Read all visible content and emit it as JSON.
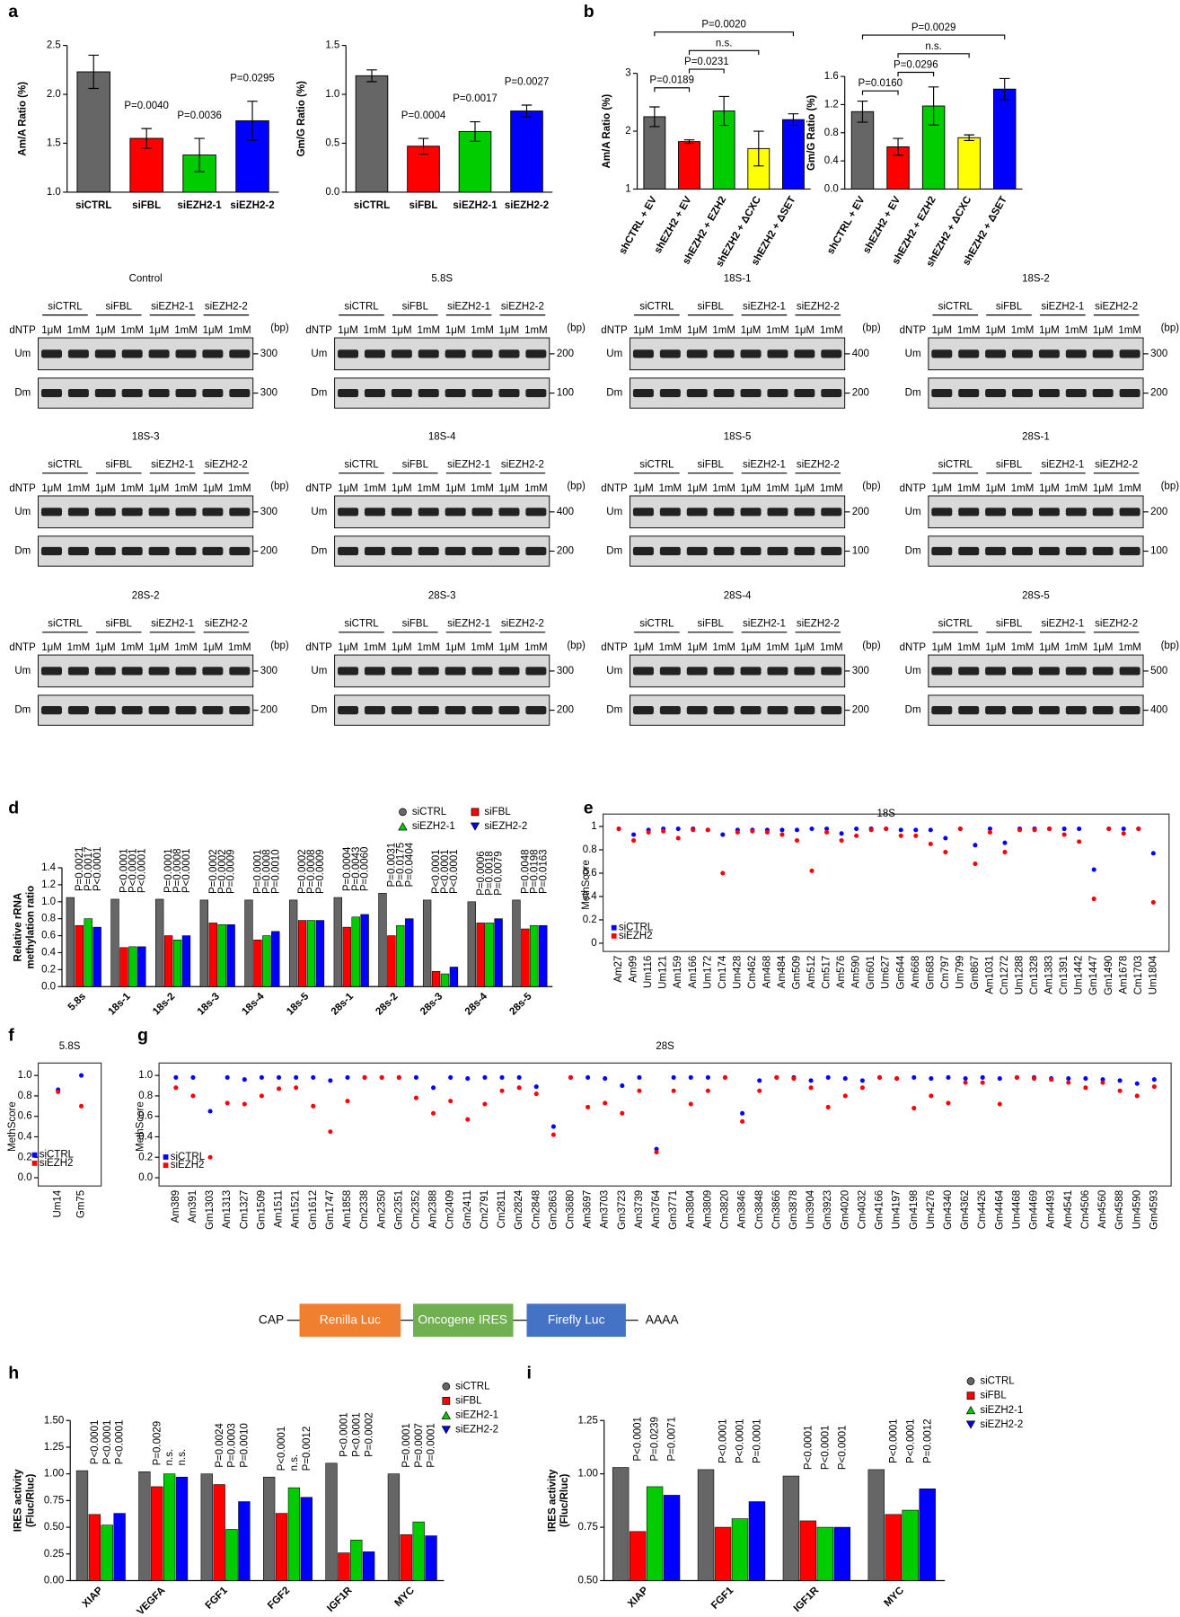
{
  "panel_labels": [
    "a",
    "b",
    "d",
    "e",
    "f",
    "g",
    "h",
    "i"
  ],
  "construct": {
    "start": "CAP",
    "elements": [
      "Renilla Luc",
      "Oncogene IRES",
      "Firefly Luc"
    ],
    "end": "AAAA"
  },
  "gels": {
    "groups": [
      "siCTRL",
      "siFBL",
      "siEZH2-1",
      "siEZH2-2"
    ],
    "concentrations": [
      "1μM",
      "1mM"
    ],
    "dntp": "dNTP",
    "unit": "(bp)",
    "rows": [
      "Um",
      "Dm"
    ],
    "panels": [
      {
        "title": "Control",
        "markers": [
          300,
          300
        ]
      },
      {
        "title": "5.8S",
        "markers": [
          200,
          100
        ]
      },
      {
        "title": "18S-1",
        "markers": [
          400,
          200
        ]
      },
      {
        "title": "18S-2",
        "markers": [
          300,
          200
        ]
      },
      {
        "title": "18S-3",
        "markers": [
          300,
          200
        ]
      },
      {
        "title": "18S-4",
        "markers": [
          400,
          200
        ]
      },
      {
        "title": "18S-5",
        "markers": [
          200,
          100
        ]
      },
      {
        "title": "28S-1",
        "markers": [
          200,
          100
        ]
      },
      {
        "title": "28S-2",
        "markers": [
          300,
          200
        ]
      },
      {
        "title": "28S-3",
        "markers": [
          300,
          200
        ]
      },
      {
        "title": "28S-4",
        "markers": [
          300,
          200
        ]
      },
      {
        "title": "28S-5",
        "markers": [
          500,
          400
        ]
      }
    ]
  },
  "chart_data": [
    {
      "type": "bar",
      "ylabel": "Am/A Ratio (%)",
      "categories": [
        "siCTRL",
        "siFBL",
        "siEZH2-1",
        "siEZH2-2"
      ],
      "values": [
        2.23,
        1.55,
        1.38,
        1.73
      ],
      "errors": [
        0.17,
        0.1,
        0.17,
        0.2
      ],
      "colors": [
        "#666666",
        "#ff0000",
        "#00cc00",
        "#0000ff"
      ],
      "ylim": [
        1.0,
        2.5
      ],
      "yticks": [
        {
          "value": 1,
          "label": "1.0"
        },
        1.5,
        {
          "value": 2,
          "label": "2.0"
        },
        2.5
      ],
      "annotations": [
        null,
        "P=0.0040",
        "P=0.0036",
        "P=0.0295"
      ]
    },
    {
      "type": "bar",
      "ylabel": "Gm/G Ratio (%)",
      "categories": [
        "siCTRL",
        "siFBL",
        "siEZH2-1",
        "siEZH2-2"
      ],
      "values": [
        1.19,
        0.47,
        0.62,
        0.83
      ],
      "errors": [
        0.06,
        0.08,
        0.1,
        0.06
      ],
      "colors": [
        "#666666",
        "#ff0000",
        "#00cc00",
        "#0000ff"
      ],
      "ylim": [
        0,
        1.5
      ],
      "yticks": [
        {
          "value": 0,
          "label": "0.0"
        },
        0.5,
        {
          "value": 1,
          "label": "1.0"
        },
        1.5
      ],
      "annotations": [
        null,
        "P=0.0004",
        "P=0.0017",
        "P=0.0027"
      ]
    },
    {
      "type": "bar",
      "ylabel": "Am/A Ratio (%)",
      "categories": [
        "shCTRL + EV",
        "shEZH2 + EV",
        "shEZH2 + EZH2",
        "shEZH2 + ΔCXC",
        "shEZH2 + ΔSET"
      ],
      "values": [
        2.25,
        1.82,
        2.35,
        1.7,
        2.2
      ],
      "errors": [
        0.17,
        0.03,
        0.25,
        0.3,
        0.1
      ],
      "colors": [
        "#666666",
        "#ff0000",
        "#00cc00",
        "#ffff00",
        "#0000ff"
      ],
      "ylim": [
        1,
        3
      ],
      "yticks": [
        1,
        2,
        3
      ],
      "comparisons": [
        {
          "label": "P=0.0189",
          "between": [
            0,
            1
          ]
        },
        {
          "label": "P=0.0231",
          "between": [
            1,
            2
          ]
        },
        {
          "label": "n.s.",
          "between": [
            1,
            3
          ]
        },
        {
          "label": "P=0.0020",
          "between": [
            0,
            4
          ]
        }
      ]
    },
    {
      "type": "bar",
      "ylabel": "Gm/G Ratio (%)",
      "categories": [
        "shCTRL + EV",
        "shEZH2 + EV",
        "shEZH2 + EZH2",
        "shEZH2 + ΔCXC",
        "shEZH2 + ΔSET"
      ],
      "values": [
        1.1,
        0.6,
        1.18,
        0.73,
        1.42
      ],
      "errors": [
        0.15,
        0.12,
        0.27,
        0.04,
        0.15
      ],
      "colors": [
        "#666666",
        "#ff0000",
        "#00cc00",
        "#ffff00",
        "#0000ff"
      ],
      "ylim": [
        0,
        1.6
      ],
      "yticks": [
        {
          "value": 0,
          "label": "0.0"
        },
        0.4,
        0.8,
        1.2,
        1.6
      ],
      "comparisons": [
        {
          "label": "P=0.0160",
          "between": [
            0,
            1
          ]
        },
        {
          "label": "P=0.0296",
          "between": [
            1,
            2
          ]
        },
        {
          "label": "n.s.",
          "between": [
            1,
            3
          ]
        },
        {
          "label": "P=0.0029",
          "between": [
            0,
            4
          ]
        }
      ]
    },
    {
      "type": "grouped_bar",
      "ylabel": [
        "Relative rRNA",
        "methylation ratio"
      ],
      "categories": [
        "5.8s",
        "18s-1",
        "18s-2",
        "18s-3",
        "18s-4",
        "18s-5",
        "28s-1",
        "28s-2",
        "28s-3",
        "28s-4",
        "28s-5"
      ],
      "series": [
        {
          "name": "siCTRL",
          "color": "#666666",
          "values": [
            1.05,
            1.03,
            1.03,
            1.02,
            1.02,
            1.02,
            1.05,
            1.1,
            1.02,
            1.0,
            1.02
          ]
        },
        {
          "name": "siFBL",
          "color": "#ff0000",
          "values": [
            0.72,
            0.46,
            0.6,
            0.75,
            0.55,
            0.78,
            0.7,
            0.6,
            0.18,
            0.75,
            0.68
          ]
        },
        {
          "name": "siEZH2-1",
          "color": "#00cc00",
          "values": [
            0.8,
            0.47,
            0.55,
            0.73,
            0.6,
            0.78,
            0.82,
            0.72,
            0.15,
            0.75,
            0.72
          ]
        },
        {
          "name": "siEZH2-2",
          "color": "#0000ff",
          "values": [
            0.7,
            0.47,
            0.6,
            0.73,
            0.65,
            0.78,
            0.85,
            0.8,
            0.23,
            0.8,
            0.72
          ]
        }
      ],
      "ylim": [
        0,
        1.4
      ],
      "yticks": [
        {
          "value": 0,
          "label": "0.0"
        },
        0.2,
        0.4,
        0.6,
        0.8,
        {
          "value": 1,
          "label": "1.0"
        },
        1.2,
        1.4
      ],
      "p_labels": [
        [
          "P=0.0021",
          "P=0.0017",
          "P<0.0001"
        ],
        [
          "P<0.0001",
          "P<0.0001",
          "P<0.0001"
        ],
        [
          "P=0.0001",
          "P=0.0008",
          "P<0.0001"
        ],
        [
          "P=0.0002",
          "P=0.0002",
          "P=0.0009"
        ],
        [
          "P=0.0001",
          "P=0.0008",
          "P=0.0010"
        ],
        [
          "P=0.0002",
          "P=0.0008",
          "P=0.0009"
        ],
        [
          "P=0.0004",
          "P=0.0043",
          "P=0.0060"
        ],
        [
          "P=0.0031",
          "P=0.0175",
          "P=0.0404"
        ],
        [
          "P<0.0001",
          "P<0.0001",
          "P<0.0001"
        ],
        [
          "P=0.0006",
          "P=0.0018",
          "P=0.0079"
        ],
        [
          "P=0.0048",
          "P=0.0198",
          "P=0.0163"
        ]
      ]
    },
    {
      "type": "dot",
      "title": "18S",
      "ylabel": "MethScore",
      "categories": [
        "Am27",
        "Am99",
        "Um116",
        "Um121",
        "Am159",
        "Am166",
        "Um172",
        "Cm174",
        "Um428",
        "Cm462",
        "Am468",
        "Am484",
        "Gm509",
        "Am512",
        "Cm517",
        "Am576",
        "Am590",
        "Gm601",
        "Um627",
        "Gm644",
        "Am668",
        "Gm683",
        "Cm797",
        "Um799",
        "Gm867",
        "Am1031",
        "Cm1272",
        "Um1288",
        "Cm1328",
        "Am1383",
        "Cm1391",
        "Um1442",
        "Gm1447",
        "Gm1490",
        "Am1678",
        "Cm1703",
        "Um1804"
      ],
      "series": [
        {
          "name": "siCTRL",
          "color": "#0000ff",
          "values": [
            0.98,
            0.93,
            0.97,
            0.98,
            0.98,
            0.98,
            0.97,
            0.93,
            0.97,
            0.97,
            0.97,
            0.97,
            0.97,
            0.98,
            0.98,
            0.94,
            0.98,
            0.98,
            0.98,
            0.97,
            0.97,
            0.97,
            0.9,
            0.98,
            0.84,
            0.98,
            0.86,
            0.98,
            0.98,
            0.98,
            0.98,
            0.98,
            0.63,
            0.98,
            0.98,
            0.98,
            0.77
          ]
        },
        {
          "name": "siEZH2",
          "color": "#ff0000",
          "values": [
            0.98,
            0.88,
            0.95,
            0.96,
            0.9,
            0.97,
            0.97,
            0.6,
            0.95,
            0.96,
            0.95,
            0.93,
            0.88,
            0.62,
            0.95,
            0.88,
            0.92,
            0.97,
            0.98,
            0.92,
            0.92,
            0.85,
            0.78,
            0.98,
            0.68,
            0.95,
            0.78,
            0.97,
            0.97,
            0.98,
            0.93,
            0.87,
            0.38,
            0.98,
            0.94,
            0.98,
            0.35
          ]
        }
      ],
      "ylim": [
        0,
        1
      ],
      "yticks": [
        0,
        0.2,
        0.4,
        0.6,
        0.8,
        1
      ]
    },
    {
      "type": "dot",
      "title": "5.8S",
      "ylabel": "MethScore",
      "categories": [
        "Um14",
        "Gm75"
      ],
      "series": [
        {
          "name": "siCTRL",
          "color": "#0000ff",
          "values": [
            0.86,
            1.0
          ]
        },
        {
          "name": "siEZH2",
          "color": "#ff0000",
          "values": [
            0.84,
            0.7
          ]
        }
      ],
      "ylim": [
        0,
        1
      ],
      "yticks": [
        {
          "value": 0,
          "label": "0.0"
        },
        0.2,
        0.4,
        0.6,
        0.8,
        {
          "value": 1,
          "label": "1.0"
        }
      ]
    },
    {
      "type": "dot",
      "title": "28S",
      "ylabel": "MethScore",
      "categories": [
        "Am389",
        "Am391",
        "Gm1303",
        "Am1313",
        "Cm1327",
        "Gm1509",
        "Am1511",
        "Am1521",
        "Gm1612",
        "Gm1747",
        "Am1858",
        "Cm2338",
        "Am2350",
        "Gm2351",
        "Cm2352",
        "Am2388",
        "Cm2409",
        "Gm2411",
        "Cm2791",
        "Cm2811",
        "Gm2824",
        "Cm2848",
        "Gm2863",
        "Cm3680",
        "Am3697",
        "Am3703",
        "Gm3723",
        "Am3739",
        "Am3764",
        "Gm3771",
        "Am3804",
        "Am3809",
        "Cm3820",
        "Am3846",
        "Cm3848",
        "Cm3866",
        "Gm3878",
        "Um3904",
        "Gm3923",
        "Gm4020",
        "Cm4032",
        "Gm4166",
        "Um4197",
        "Gm4198",
        "Um4276",
        "Gm4340",
        "Gm4362",
        "Cm4426",
        "Gm4464",
        "Um4468",
        "Gm4469",
        "Am4493",
        "Am4541",
        "Cm4506",
        "Am4560",
        "Gm4588",
        "Um4590",
        "Gm4593"
      ],
      "series": [
        {
          "name": "siCTRL",
          "color": "#0000ff",
          "values": [
            0.98,
            0.98,
            0.65,
            0.98,
            0.96,
            0.98,
            0.98,
            0.98,
            0.98,
            0.95,
            0.98,
            0.98,
            0.98,
            0.98,
            0.98,
            0.88,
            0.98,
            0.97,
            0.98,
            0.98,
            0.98,
            0.89,
            0.5,
            0.98,
            0.98,
            0.97,
            0.9,
            0.98,
            0.28,
            0.98,
            0.98,
            0.98,
            0.98,
            0.63,
            0.95,
            0.98,
            0.98,
            0.95,
            0.98,
            0.97,
            0.95,
            0.98,
            0.97,
            0.98,
            0.97,
            0.98,
            0.97,
            0.98,
            0.97,
            0.98,
            0.98,
            0.97,
            0.97,
            0.97,
            0.96,
            0.95,
            0.92,
            0.96
          ]
        },
        {
          "name": "siEZH2",
          "color": "#ff0000",
          "values": [
            0.88,
            0.8,
            0.2,
            0.73,
            0.72,
            0.8,
            0.87,
            0.88,
            0.7,
            0.45,
            0.75,
            0.98,
            0.98,
            0.98,
            0.78,
            0.63,
            0.75,
            0.57,
            0.72,
            0.85,
            0.88,
            0.82,
            0.42,
            0.98,
            0.69,
            0.73,
            0.63,
            0.85,
            0.25,
            0.85,
            0.72,
            0.85,
            0.98,
            0.55,
            0.85,
            0.98,
            0.97,
            0.88,
            0.69,
            0.8,
            0.88,
            0.98,
            0.97,
            0.68,
            0.8,
            0.73,
            0.93,
            0.93,
            0.72,
            0.98,
            0.97,
            0.96,
            0.93,
            0.88,
            0.93,
            0.85,
            0.8,
            0.89
          ]
        }
      ],
      "ylim": [
        0,
        1
      ],
      "yticks": [
        {
          "value": 0,
          "label": "0.0"
        },
        0.2,
        0.4,
        0.6,
        0.8,
        {
          "value": 1,
          "label": "1.0"
        }
      ]
    },
    {
      "type": "grouped_bar",
      "ylabel": [
        "IRES activity",
        "(Fluc/Rluc)"
      ],
      "categories": [
        "XIAP",
        "VEGFA",
        "FGF1",
        "FGF2",
        "IGF1R",
        "MYC"
      ],
      "series": [
        {
          "name": "siCTRL",
          "color": "#666666",
          "values": [
            1.03,
            1.02,
            1.0,
            0.97,
            1.1,
            1.0
          ]
        },
        {
          "name": "siFBL",
          "color": "#ff0000",
          "values": [
            0.62,
            0.88,
            0.9,
            0.63,
            0.26,
            0.43
          ]
        },
        {
          "name": "siEZH2-1",
          "color": "#00cc00",
          "values": [
            0.52,
            1.0,
            0.48,
            0.87,
            0.38,
            0.55
          ]
        },
        {
          "name": "siEZH2-2",
          "color": "#0000ff",
          "values": [
            0.63,
            0.97,
            0.74,
            0.78,
            0.27,
            0.42
          ]
        }
      ],
      "ylim": [
        0,
        1.5
      ],
      "yticks": [
        {
          "value": 0,
          "label": "0.00"
        },
        0.25,
        {
          "value": 0.5,
          "label": "0.50"
        },
        0.75,
        {
          "value": 1,
          "label": "1.00"
        },
        1.25,
        {
          "value": 1.5,
          "label": "1.50"
        }
      ],
      "p_labels": [
        [
          "P<0.0001",
          "P<0.0001",
          "P<0.0001"
        ],
        [
          "P=0.0029",
          "n.s.",
          "n.s."
        ],
        [
          "P=0.0024",
          "P=0.0003",
          "P=0.0010"
        ],
        [
          "P<0.0001",
          "n.s.",
          "P=0.0012"
        ],
        [
          "P<0.0001",
          "P<0.0001",
          "P=0.0002"
        ],
        [
          "P=0.0001",
          "P=0.0007",
          "P=0.0001"
        ]
      ]
    },
    {
      "type": "grouped_bar",
      "ylabel": [
        "IRES activity",
        "(Fluc/Rluc)"
      ],
      "categories": [
        "XIAP",
        "FGF1",
        "IGF1R",
        "MYC"
      ],
      "series": [
        {
          "name": "siCTRL",
          "color": "#666666",
          "values": [
            1.03,
            1.02,
            0.99,
            1.02
          ]
        },
        {
          "name": "siFBL",
          "color": "#ff0000",
          "values": [
            0.73,
            0.75,
            0.78,
            0.81
          ]
        },
        {
          "name": "siEZH2-1",
          "color": "#00cc00",
          "values": [
            0.94,
            0.79,
            0.75,
            0.83
          ]
        },
        {
          "name": "siEZH2-2",
          "color": "#0000ff",
          "values": [
            0.9,
            0.87,
            0.75,
            0.93
          ]
        }
      ],
      "ylim": [
        0.5,
        1.25
      ],
      "yticks": [
        {
          "value": 0.5,
          "label": "0.50"
        },
        0.75,
        {
          "value": 1,
          "label": "1.00"
        },
        1.25
      ],
      "p_labels": [
        [
          "P<0.0001",
          "P=0.0239",
          "P=0.0071"
        ],
        [
          "P<0.0001",
          "P<0.0001",
          "P=0.0001"
        ],
        [
          "P<0.0001",
          "P<0.0001",
          "P<0.0001"
        ],
        [
          "P<0.0001",
          "P<0.0001",
          "P=0.0012"
        ]
      ]
    }
  ]
}
